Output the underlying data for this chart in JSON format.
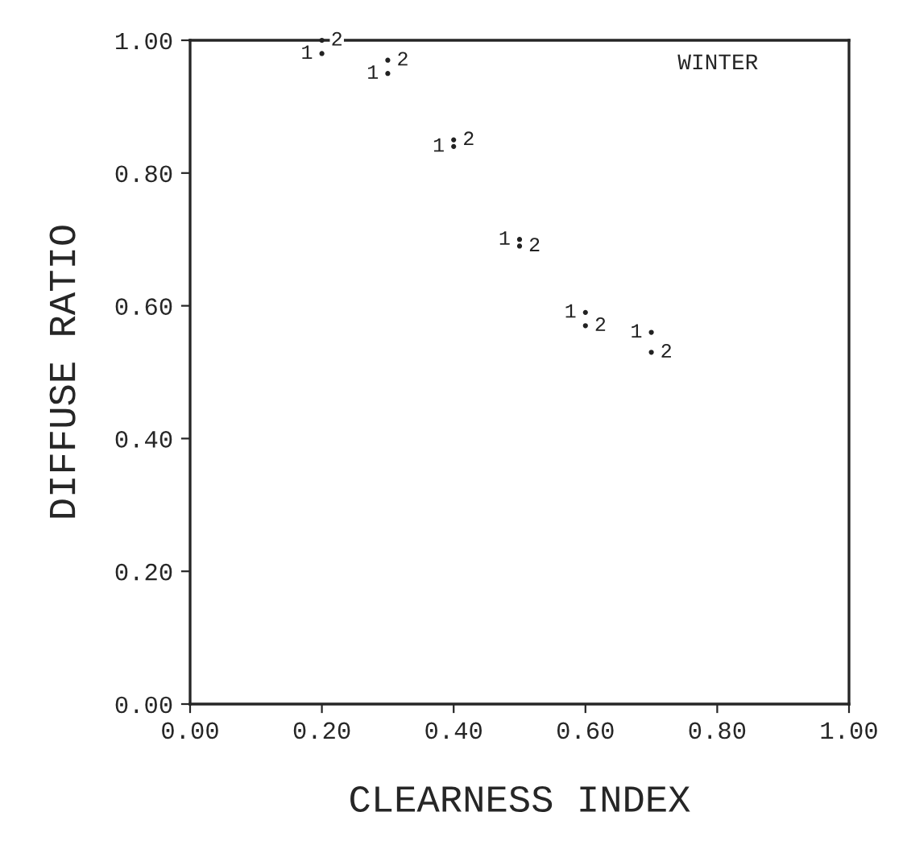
{
  "chart_data": {
    "type": "scatter",
    "xlabel": "CLEARNESS INDEX",
    "ylabel": "DIFFUSE RATIO",
    "annotations": [
      "WINTER"
    ],
    "x": [
      0.2,
      0.3,
      0.4,
      0.5,
      0.6,
      0.7
    ],
    "series": [
      {
        "name": "1",
        "color": "#222222",
        "values": [
          0.98,
          0.95,
          0.84,
          0.7,
          0.59,
          0.56
        ]
      },
      {
        "name": "2",
        "color": "#222222",
        "values": [
          1.0,
          0.97,
          0.85,
          0.69,
          0.57,
          0.53
        ]
      }
    ],
    "xlim": [
      0,
      1
    ],
    "ylim": [
      0,
      1
    ],
    "xticks": [
      {
        "value": 0,
        "label": "0.00"
      },
      {
        "value": 0.2,
        "label": "0.20"
      },
      {
        "value": 0.4,
        "label": "0.40"
      },
      {
        "value": 0.6,
        "label": "0.60"
      },
      {
        "value": 0.8,
        "label": "0.80"
      },
      {
        "value": 1,
        "label": "1.00"
      }
    ],
    "yticks": [
      {
        "value": 0,
        "label": "0.00"
      },
      {
        "value": 0.2,
        "label": "0.20"
      },
      {
        "value": 0.4,
        "label": "0.40"
      },
      {
        "value": 0.6,
        "label": "0.60"
      },
      {
        "value": 0.8,
        "label": "0.80"
      },
      {
        "value": 1,
        "label": "1.00"
      }
    ],
    "grid": false
  }
}
